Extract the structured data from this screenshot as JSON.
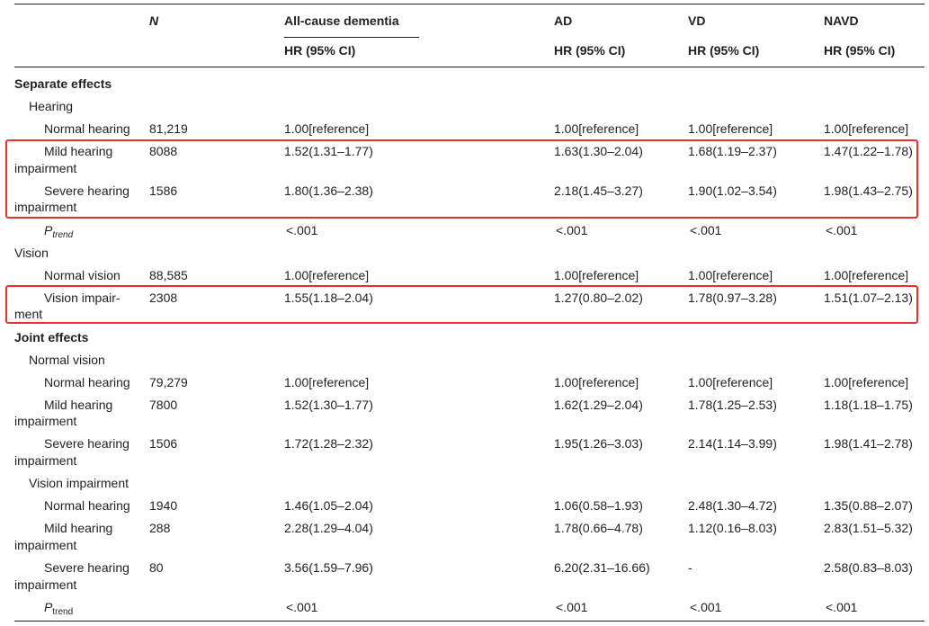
{
  "table": {
    "header": {
      "n": "N",
      "all_cause": "All-cause dementia",
      "ad": "AD",
      "vd": "VD",
      "navd": "NAVD",
      "hr_label": "HR (95% CI)"
    },
    "separate": {
      "title": "Separate effects",
      "hearing_label": "Hearing",
      "rows": [
        {
          "label": "Normal hearing",
          "n": "81,219",
          "all": "1.00[reference]",
          "ad": "1.00[reference]",
          "vd": "1.00[reference]",
          "navd": "1.00[reference]"
        },
        {
          "label1": "Mild hearing",
          "label2": "impairment",
          "n": "8088",
          "all": "1.52(1.31–1.77)",
          "ad": "1.63(1.30–2.04)",
          "vd": "1.68(1.19–2.37)",
          "navd": "1.47(1.22–1.78)"
        },
        {
          "label1": "Severe hearing",
          "label2": "impairment",
          "n": "1586",
          "all": "1.80(1.36–2.38)",
          "ad": "2.18(1.45–3.27)",
          "vd": "1.90(1.02–3.54)",
          "navd": "1.98(1.43–2.75)"
        }
      ],
      "ptrend": {
        "p": "P",
        "sub": "trend",
        "all": "<.001",
        "ad": "<.001",
        "vd": "<.001",
        "navd": "<.001"
      },
      "vision_label": "Vision",
      "vision_rows": [
        {
          "label": "Normal vision",
          "n": "88,585",
          "all": "1.00[reference]",
          "ad": "1.00[reference]",
          "vd": "1.00[reference]",
          "navd": "1.00[reference]"
        },
        {
          "label1": "Vision impair-",
          "label2": "ment",
          "n": "2308",
          "all": "1.55(1.18–2.04)",
          "ad": "1.27(0.80–2.02)",
          "vd": "1.78(0.97–3.28)",
          "navd": "1.51(1.07–2.13)"
        }
      ]
    },
    "joint": {
      "title": "Joint effects",
      "normal_vision_label": "Normal vision",
      "normal_vision_rows": [
        {
          "label": "Normal hearing",
          "n": "79,279",
          "all": "1.00[reference]",
          "ad": "1.00[reference]",
          "vd": "1.00[reference]",
          "navd": "1.00[reference]"
        },
        {
          "label1": "Mild hearing",
          "label2": "impairment",
          "n": "7800",
          "all": "1.52(1.30–1.77)",
          "ad": "1.62(1.29–2.04)",
          "vd": "1.78(1.25–2.53)",
          "navd": "1.18(1.18–1.75)"
        },
        {
          "label1": "Severe hearing",
          "label2": "impairment",
          "n": "1506",
          "all": "1.72(1.28–2.32)",
          "ad": "1.95(1.26–3.03)",
          "vd": "2.14(1.14–3.99)",
          "navd": "1.98(1.41–2.78)"
        }
      ],
      "vision_impairment_label": "Vision impairment",
      "vision_impairment_rows": [
        {
          "label": "Normal hearing",
          "n": "1940",
          "all": "1.46(1.05–2.04)",
          "ad": "1.06(0.58–1.93)",
          "vd": "2.48(1.30–4.72)",
          "navd": "1.35(0.88–2.07)"
        },
        {
          "label1": "Mild hearing",
          "label2": "impairment",
          "n": "288",
          "all": "2.28(1.29–4.04)",
          "ad": "1.78(0.66–4.78)",
          "vd": "1.12(0.16–8.03)",
          "navd": "2.83(1.51–5.32)"
        },
        {
          "label1": "Severe hearing",
          "label2": "impairment",
          "n": "80",
          "all": "3.56(1.59–7.96)",
          "ad": "6.20(2.31–16.66)",
          "vd": "-",
          "navd": "2.58(0.83–8.03)"
        }
      ],
      "ptrend": {
        "p": "P",
        "sub": "trend",
        "all": "<.001",
        "ad": "<.001",
        "vd": "<.001",
        "navd": "<.001"
      }
    }
  }
}
